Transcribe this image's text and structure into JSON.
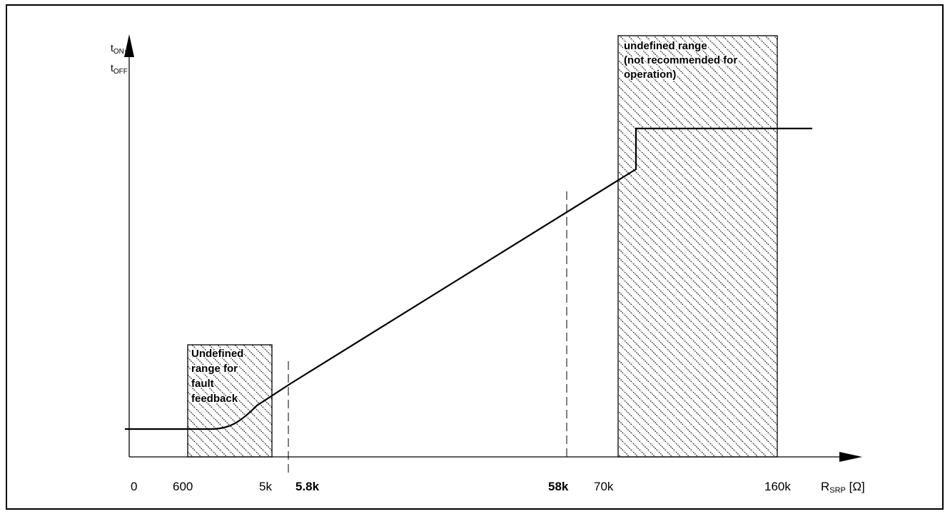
{
  "chart_data": {
    "type": "line",
    "title": "",
    "y_label": {
      "lines": [
        {
          "main": "t",
          "sub": "ON",
          "suffix": ","
        },
        {
          "main": "t",
          "sub": "OFF",
          "suffix": ""
        }
      ]
    },
    "x_label": {
      "main": "R",
      "sub": "SRP",
      "unit": " [Ω]"
    },
    "ticks": [
      {
        "label": "0",
        "bold": false
      },
      {
        "label": "600",
        "bold": false
      },
      {
        "label": "5k",
        "bold": false
      },
      {
        "label": "5.8k",
        "bold": true
      },
      {
        "label": "58k",
        "bold": true
      },
      {
        "label": "70k",
        "bold": false
      },
      {
        "label": "160k",
        "bold": false
      }
    ],
    "x_scale": "schematic, not to scale",
    "y_values": "no numeric values shown",
    "regions": [
      {
        "from": "600",
        "to": "5k",
        "lines": [
          "Undefined",
          "range for",
          "fault",
          "feedback"
        ],
        "fill": "diagonal hatch"
      },
      {
        "from": "70k",
        "to": "160k",
        "lines": [
          "undefined range",
          "(not recommended for",
          "operation)"
        ],
        "fill": "diagonal hatch"
      }
    ],
    "reference_lines": [
      "5.8k",
      "58k"
    ],
    "series": [
      {
        "shape": "flat from 0 to ~600, smooth rise through the 600–5k range, linear increase from 5.8k to 58k, continuing to ~72k, step jump, then flat to beyond 160k"
      }
    ],
    "grid": false,
    "colors": {
      "line": "#000000",
      "hatch": "#000000",
      "background": "#ffffff"
    }
  }
}
